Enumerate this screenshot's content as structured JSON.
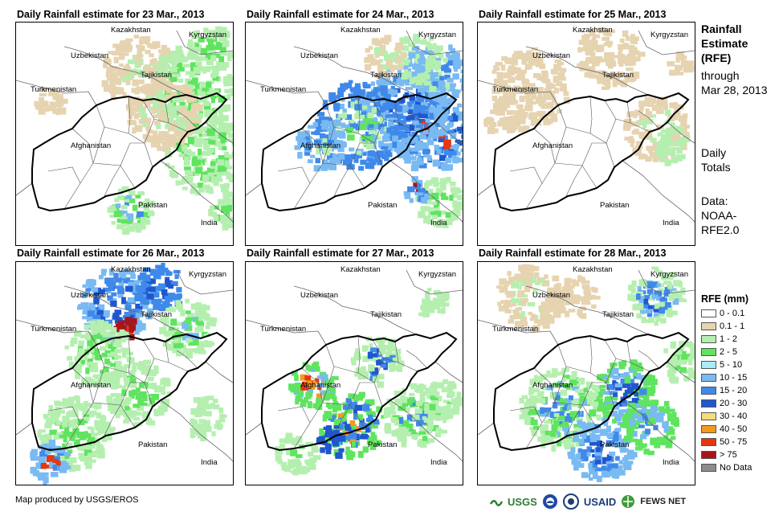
{
  "panels": [
    {
      "title": "Daily Rainfall estimate for 23 Mar., 2013"
    },
    {
      "title": "Daily Rainfall estimate for 24 Mar., 2013"
    },
    {
      "title": "Daily Rainfall estimate for 25 Mar., 2013"
    },
    {
      "title": "Daily Rainfall estimate for 26 Mar., 2013"
    },
    {
      "title": "Daily Rainfall estimate for 27 Mar., 2013"
    },
    {
      "title": "Daily Rainfall estimate for 28 Mar., 2013"
    }
  ],
  "map_labels": {
    "kazakhstan": "Kazakhstan",
    "kyrgyzstan": "Kyrgyzstan",
    "uzbekistan": "Uzbekistan",
    "tajikistan": "Tajikistan",
    "turkmenistan": "Turkmenistan",
    "afghanistan": "Afghanistan",
    "pakistan": "Pakistan",
    "india": "India"
  },
  "side": {
    "title_lines": [
      "Rainfall",
      "Estimate",
      "(RFE)"
    ],
    "through_lines": [
      "through",
      "Mar 28, 2013"
    ],
    "totals_lines": [
      "Daily",
      "Totals"
    ],
    "data_lines": [
      "Data:",
      "NOAA-",
      "RFE2.0"
    ]
  },
  "legend": {
    "title": "RFE (mm)",
    "items": [
      {
        "label": "0 - 0.1",
        "color": "#ffffff"
      },
      {
        "label": "0.1 - 1",
        "color": "#e6d3b0"
      },
      {
        "label": "1 - 2",
        "color": "#b5efb0"
      },
      {
        "label": "2 - 5",
        "color": "#5fe45f"
      },
      {
        "label": "5 - 10",
        "color": "#a8ecf5"
      },
      {
        "label": "10 - 15",
        "color": "#79baf2"
      },
      {
        "label": "15 - 20",
        "color": "#3f89ea"
      },
      {
        "label": "20 - 30",
        "color": "#1f57cf"
      },
      {
        "label": "30 - 40",
        "color": "#f8dc78"
      },
      {
        "label": "40 - 50",
        "color": "#f39a1e"
      },
      {
        "label": "50 - 75",
        "color": "#e8360f"
      },
      {
        "label": "> 75",
        "color": "#a8161b"
      },
      {
        "label": "No Data",
        "color": "#8c8c8c"
      }
    ]
  },
  "footer": "Map produced by USGS/EROS",
  "logos": {
    "usgs": "USGS",
    "usaid": "USAID",
    "fewsnet": "FEWS NET"
  }
}
